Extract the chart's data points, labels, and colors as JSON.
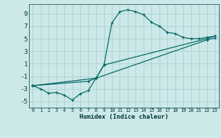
{
  "xlabel": "Humidex (Indice chaleur)",
  "ylabel": "",
  "bg_color": "#cce8e8",
  "grid_color": "#aacfcf",
  "line_color": "#006666",
  "xlim": [
    -0.5,
    23.5
  ],
  "ylim": [
    -6.0,
    10.5
  ],
  "xticks": [
    0,
    1,
    2,
    3,
    4,
    5,
    6,
    7,
    8,
    9,
    10,
    11,
    12,
    13,
    14,
    15,
    16,
    17,
    18,
    19,
    20,
    21,
    22,
    23
  ],
  "yticks": [
    -5,
    -3,
    -1,
    1,
    3,
    5,
    7,
    9
  ],
  "curve1_x": [
    0,
    1,
    2,
    3,
    4,
    5,
    6,
    7,
    8,
    9,
    10,
    11,
    12,
    13,
    14,
    15,
    16,
    17,
    18,
    19,
    20,
    21,
    22,
    23
  ],
  "curve1_y": [
    -2.5,
    -3.0,
    -3.7,
    -3.6,
    -4.0,
    -4.8,
    -3.8,
    -3.3,
    -1.3,
    0.8,
    7.5,
    9.3,
    9.6,
    9.3,
    8.8,
    7.6,
    7.0,
    6.0,
    5.8,
    5.2,
    5.0,
    5.0,
    5.2,
    5.4
  ],
  "curve2_x": [
    0,
    8,
    9,
    22,
    23
  ],
  "curve2_y": [
    -2.5,
    -1.3,
    0.8,
    5.0,
    5.4
  ],
  "curve3_x": [
    0,
    7,
    8,
    22,
    23
  ],
  "curve3_y": [
    -2.5,
    -1.8,
    -1.3,
    4.8,
    5.1
  ]
}
